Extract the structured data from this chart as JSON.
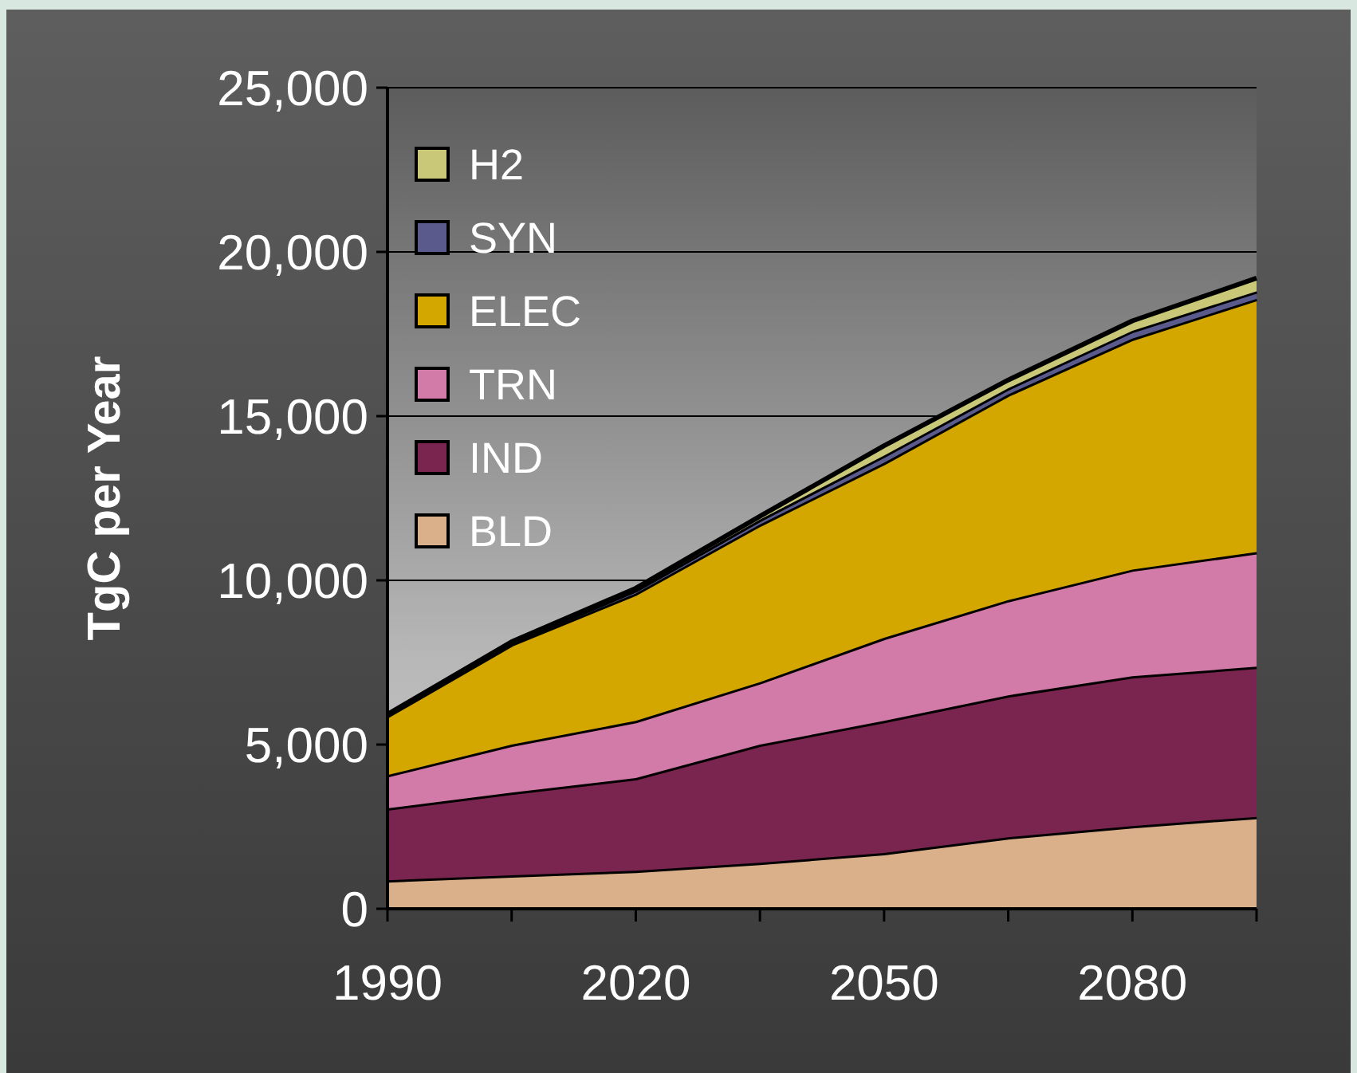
{
  "chart_data": {
    "type": "area",
    "stacked": true,
    "ylabel": "TgC per Year",
    "x": [
      1990,
      2005,
      2020,
      2035,
      2050,
      2065,
      2080,
      2095
    ],
    "series": [
      {
        "name": "BLD",
        "color": "#d9b08a",
        "values": [
          870,
          1020,
          1160,
          1400,
          1700,
          2180,
          2520,
          2800
        ]
      },
      {
        "name": "IND",
        "color": "#7a2550",
        "values": [
          2190,
          2520,
          2820,
          3600,
          4020,
          4320,
          4560,
          4570
        ]
      },
      {
        "name": "TRN",
        "color": "#d27aa8",
        "values": [
          1010,
          1460,
          1740,
          1900,
          2530,
          2900,
          3250,
          3490
        ]
      },
      {
        "name": "ELEC",
        "color": "#d4a600",
        "values": [
          1800,
          3050,
          3880,
          4800,
          5330,
          6260,
          7030,
          7710
        ]
      },
      {
        "name": "SYN",
        "color": "#5a5a8c",
        "values": [
          30,
          50,
          100,
          150,
          220,
          190,
          240,
          230
        ]
      },
      {
        "name": "H2",
        "color": "#c8c878",
        "values": [
          20,
          30,
          60,
          100,
          300,
          250,
          300,
          400
        ]
      }
    ],
    "xlim": [
      1990,
      2095
    ],
    "xticks": [
      1990,
      {
        "value": 2005,
        "label": null
      },
      2020,
      {
        "value": 2035,
        "label": null
      },
      2050,
      {
        "value": 2065,
        "label": null
      },
      2080,
      {
        "value": 2095,
        "label": null
      }
    ],
    "ylim": [
      0,
      25000
    ],
    "yticks": [
      0,
      {
        "value": 5000,
        "label": "5,000"
      },
      {
        "value": 10000,
        "label": "10,000"
      },
      {
        "value": 15000,
        "label": "15,000"
      },
      {
        "value": 20000,
        "label": "20,000"
      },
      {
        "value": 25000,
        "label": "25,000"
      }
    ],
    "grid": "y",
    "legend": "top left"
  }
}
